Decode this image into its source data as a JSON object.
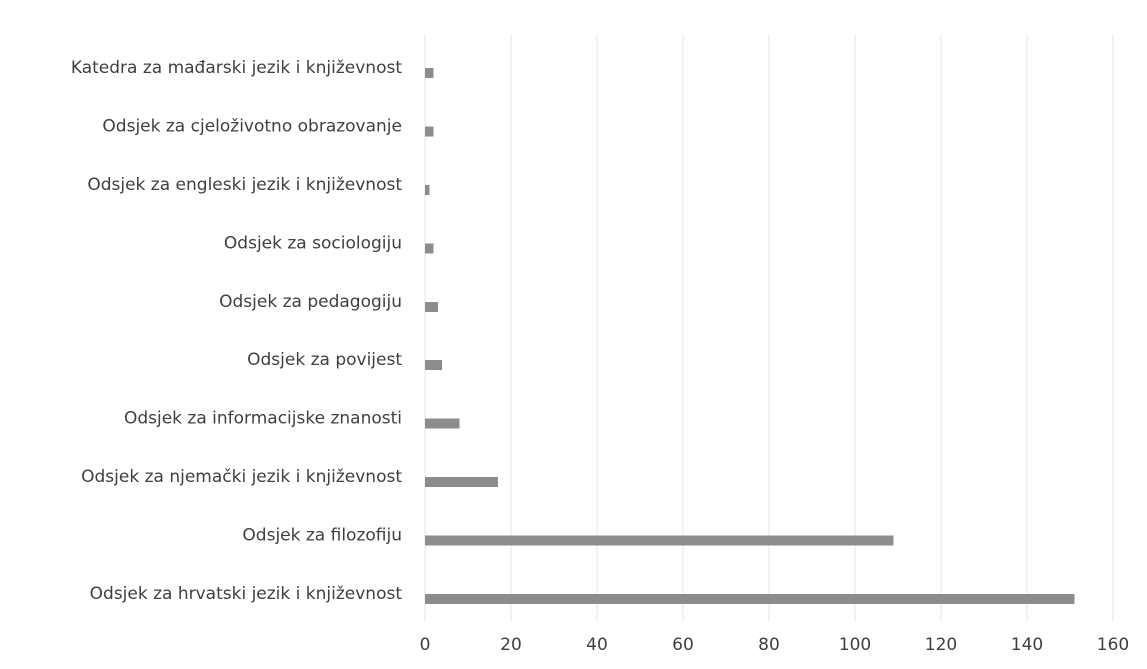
{
  "chart_data": {
    "type": "bar",
    "orientation": "horizontal",
    "title": "",
    "xlabel": "",
    "ylabel": "",
    "categories": [
      "Odsjek za hrvatski jezik i književnost",
      "Odsjek za filozofiju",
      "Odsjek za njemački jezik i književnost",
      "Odsjek za informacijske znanosti",
      "Odsjek za povijest",
      "Odsjek za pedagogiju",
      "Odsjek za sociologiju",
      "Odsjek za engleski jezik i književnost",
      "Odsjek za cjeloživotno obrazovanje",
      "Katedra za mađarski jezik i književnost"
    ],
    "values": [
      151,
      109,
      17,
      8,
      4,
      3,
      2,
      1,
      2,
      2
    ],
    "xlim": [
      0,
      160
    ],
    "xticks": [
      "0",
      "20",
      "40",
      "60",
      "80",
      "100",
      "120",
      "140",
      "160"
    ],
    "grid": true,
    "legend": "none",
    "bar_color": "#8c8c8c"
  }
}
